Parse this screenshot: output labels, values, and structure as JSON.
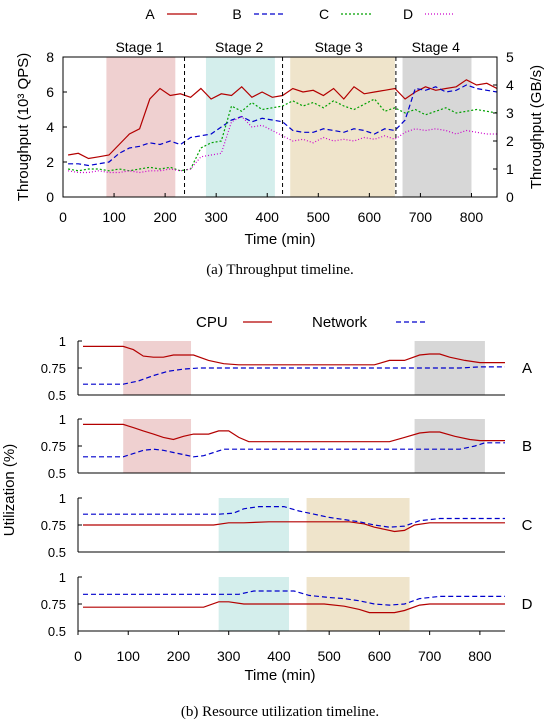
{
  "chart_data": [
    {
      "type": "line",
      "caption": "(a) Throughput timeline.",
      "xlabel": "Time (min)",
      "ylabel_left": "Throughput (10³ QPS)",
      "ylabel_right": "Throughput (GB/s)",
      "xlim": [
        0,
        850
      ],
      "ylim_left": [
        0,
        8
      ],
      "ylim_right": [
        0,
        5
      ],
      "xticks": [
        0,
        100,
        200,
        300,
        400,
        500,
        600,
        700,
        800
      ],
      "yticks_left": [
        0,
        2,
        4,
        6,
        8
      ],
      "yticks_right": [
        0,
        1,
        2,
        3,
        4,
        5
      ],
      "legend_position": "top",
      "stages": [
        {
          "label": "Stage 1",
          "start": 85,
          "end": 220,
          "color": "#efd0d0",
          "label_x": 150
        },
        {
          "label": "Stage 2",
          "start": 280,
          "end": 415,
          "color": "#d4eeec",
          "label_x": 345
        },
        {
          "label": "Stage 3",
          "start": 445,
          "end": 650,
          "color": "#efe4cb",
          "label_x": 540
        },
        {
          "label": "Stage 4",
          "start": 665,
          "end": 800,
          "color": "#d7d7d7",
          "label_x": 730
        }
      ],
      "dividers": [
        238,
        430,
        652
      ],
      "series": [
        {
          "name": "A",
          "color": "#b30000",
          "dash": "",
          "x": [
            10,
            30,
            50,
            70,
            90,
            110,
            130,
            150,
            170,
            190,
            210,
            230,
            250,
            270,
            290,
            310,
            330,
            350,
            370,
            390,
            410,
            430,
            450,
            470,
            490,
            510,
            530,
            550,
            570,
            590,
            610,
            630,
            650,
            670,
            690,
            710,
            730,
            750,
            770,
            790,
            810,
            830,
            850
          ],
          "y": [
            2.4,
            2.5,
            2.2,
            2.3,
            2.4,
            3.0,
            3.6,
            3.9,
            5.6,
            6.2,
            5.8,
            5.9,
            5.7,
            6.2,
            5.6,
            5.9,
            5.8,
            6.3,
            5.7,
            6.0,
            5.7,
            5.8,
            6.2,
            6.0,
            6.1,
            5.8,
            6.2,
            5.6,
            6.3,
            5.9,
            6.0,
            6.1,
            6.2,
            5.6,
            6.0,
            6.3,
            6.1,
            6.2,
            6.3,
            6.7,
            6.4,
            6.5,
            6.2
          ]
        },
        {
          "name": "B",
          "color": "#0000cc",
          "dash": "5,3",
          "x": [
            10,
            30,
            50,
            70,
            90,
            110,
            130,
            150,
            170,
            190,
            210,
            230,
            250,
            270,
            290,
            310,
            330,
            350,
            370,
            390,
            410,
            430,
            450,
            470,
            490,
            510,
            530,
            550,
            570,
            590,
            610,
            630,
            650,
            670,
            690,
            710,
            730,
            750,
            770,
            790,
            810,
            830,
            850
          ],
          "y": [
            1.9,
            1.9,
            1.8,
            1.9,
            2.0,
            2.5,
            2.8,
            2.9,
            3.1,
            3.0,
            3.2,
            3.0,
            3.4,
            3.5,
            3.6,
            4.0,
            4.4,
            4.6,
            4.3,
            4.5,
            4.4,
            4.3,
            3.8,
            3.7,
            3.7,
            3.9,
            3.8,
            3.7,
            3.9,
            3.8,
            3.6,
            3.9,
            3.8,
            4.4,
            6.2,
            6.1,
            6.3,
            6.0,
            6.1,
            6.4,
            6.2,
            6.1,
            6.0
          ]
        },
        {
          "name": "C",
          "color": "#00a000",
          "dash": "2,2",
          "x": [
            10,
            30,
            50,
            70,
            90,
            110,
            130,
            150,
            170,
            190,
            210,
            230,
            250,
            270,
            290,
            310,
            330,
            350,
            370,
            390,
            410,
            430,
            450,
            470,
            490,
            510,
            530,
            550,
            570,
            590,
            610,
            630,
            650,
            670,
            690,
            710,
            730,
            750,
            770,
            790,
            810,
            830,
            850
          ],
          "y": [
            1.6,
            1.5,
            1.6,
            1.6,
            1.5,
            1.6,
            1.5,
            1.6,
            1.7,
            1.6,
            1.7,
            1.5,
            1.6,
            2.8,
            3.1,
            3.2,
            5.2,
            4.9,
            5.4,
            5.0,
            5.1,
            5.2,
            5.5,
            5.2,
            5.4,
            5.1,
            5.5,
            5.2,
            5.0,
            5.3,
            5.6,
            4.9,
            5.1,
            4.8,
            5.0,
            4.7,
            4.9,
            5.1,
            4.8,
            4.9,
            5.0,
            4.9,
            4.8
          ]
        },
        {
          "name": "D",
          "color": "#cc00cc",
          "dash": "1,2",
          "x": [
            10,
            30,
            50,
            70,
            90,
            110,
            130,
            150,
            170,
            190,
            210,
            230,
            250,
            270,
            290,
            310,
            330,
            350,
            370,
            390,
            410,
            430,
            450,
            470,
            490,
            510,
            530,
            550,
            570,
            590,
            610,
            630,
            650,
            670,
            690,
            710,
            730,
            750,
            770,
            790,
            810,
            830,
            850
          ],
          "y": [
            1.5,
            1.4,
            1.4,
            1.5,
            1.4,
            1.4,
            1.5,
            1.4,
            1.5,
            1.5,
            1.6,
            1.5,
            1.6,
            2.3,
            2.4,
            2.5,
            4.3,
            4.6,
            4.0,
            4.1,
            3.8,
            3.5,
            3.2,
            3.3,
            3.1,
            3.4,
            3.2,
            3.3,
            3.2,
            3.4,
            3.3,
            3.5,
            3.3,
            3.7,
            3.9,
            3.8,
            3.9,
            3.8,
            3.6,
            3.8,
            3.7,
            3.6,
            3.6
          ]
        }
      ]
    },
    {
      "type": "line",
      "caption": "(b) Resource utilization timeline.",
      "xlabel": "Time (min)",
      "ylabel": "Utilization (%)",
      "xlim": [
        0,
        850
      ],
      "xticks": [
        0,
        100,
        200,
        300,
        400,
        500,
        600,
        700,
        800
      ],
      "ylim": [
        0.5,
        1
      ],
      "yticks": [
        0.5,
        0.75,
        1
      ],
      "ytick_labels": [
        "0.5",
        "0.75",
        "1"
      ],
      "legend": [
        {
          "name": "CPU",
          "color": "#b30000",
          "dash": ""
        },
        {
          "name": "Network",
          "color": "#0000cc",
          "dash": "5,3"
        }
      ],
      "panels": [
        {
          "label": "A",
          "shades": [
            {
              "start": 90,
              "end": 225,
              "color": "#efd0d0"
            },
            {
              "start": 670,
              "end": 810,
              "color": "#d7d7d7"
            }
          ],
          "cpu": {
            "x": [
              10,
              90,
              110,
              130,
              150,
              170,
              190,
              210,
              230,
              260,
              290,
              320,
              350,
              380,
              410,
              440,
              470,
              500,
              530,
              560,
              590,
              620,
              650,
              680,
              700,
              720,
              740,
              770,
              800,
              850
            ],
            "y": [
              0.95,
              0.95,
              0.92,
              0.86,
              0.85,
              0.85,
              0.87,
              0.87,
              0.87,
              0.82,
              0.79,
              0.78,
              0.78,
              0.78,
              0.78,
              0.78,
              0.78,
              0.78,
              0.78,
              0.78,
              0.78,
              0.82,
              0.82,
              0.87,
              0.88,
              0.88,
              0.85,
              0.82,
              0.8,
              0.8
            ]
          },
          "net": {
            "x": [
              10,
              90,
              120,
              150,
              180,
              210,
              240,
              280,
              320,
              360,
              400,
              440,
              480,
              520,
              560,
              600,
              640,
              680,
              720,
              760,
              800,
              850
            ],
            "y": [
              0.6,
              0.6,
              0.63,
              0.68,
              0.72,
              0.74,
              0.75,
              0.75,
              0.75,
              0.75,
              0.75,
              0.75,
              0.75,
              0.75,
              0.75,
              0.75,
              0.75,
              0.75,
              0.75,
              0.75,
              0.76,
              0.76
            ]
          }
        },
        {
          "label": "B",
          "shades": [
            {
              "start": 90,
              "end": 225,
              "color": "#efd0d0"
            },
            {
              "start": 670,
              "end": 810,
              "color": "#d7d7d7"
            }
          ],
          "cpu": {
            "x": [
              10,
              90,
              110,
              130,
              150,
              170,
              190,
              210,
              230,
              260,
              280,
              300,
              320,
              340,
              380,
              420,
              460,
              500,
              540,
              580,
              620,
              650,
              680,
              700,
              720,
              750,
              780,
              800,
              850
            ],
            "y": [
              0.95,
              0.95,
              0.92,
              0.89,
              0.86,
              0.83,
              0.81,
              0.84,
              0.86,
              0.86,
              0.89,
              0.89,
              0.83,
              0.79,
              0.79,
              0.79,
              0.79,
              0.79,
              0.79,
              0.79,
              0.79,
              0.83,
              0.87,
              0.88,
              0.88,
              0.84,
              0.81,
              0.8,
              0.8
            ]
          },
          "net": {
            "x": [
              10,
              90,
              110,
              130,
              150,
              170,
              190,
              210,
              230,
              250,
              270,
              290,
              330,
              380,
              430,
              480,
              530,
              580,
              630,
              680,
              720,
              760,
              790,
              810,
              850
            ],
            "y": [
              0.65,
              0.65,
              0.68,
              0.71,
              0.72,
              0.71,
              0.69,
              0.67,
              0.65,
              0.66,
              0.69,
              0.72,
              0.72,
              0.72,
              0.72,
              0.72,
              0.72,
              0.72,
              0.72,
              0.72,
              0.72,
              0.72,
              0.75,
              0.78,
              0.78
            ]
          }
        },
        {
          "label": "C",
          "shades": [
            {
              "start": 280,
              "end": 420,
              "color": "#d4eeec"
            },
            {
              "start": 455,
              "end": 660,
              "color": "#efe4cb"
            }
          ],
          "cpu": {
            "x": [
              10,
              100,
              200,
              270,
              300,
              330,
              380,
              420,
              460,
              500,
              540,
              570,
              590,
              610,
              630,
              650,
              670,
              700,
              750,
              800,
              850
            ],
            "y": [
              0.75,
              0.75,
              0.75,
              0.75,
              0.77,
              0.77,
              0.78,
              0.78,
              0.78,
              0.78,
              0.78,
              0.76,
              0.73,
              0.71,
              0.69,
              0.7,
              0.75,
              0.77,
              0.77,
              0.77,
              0.77
            ]
          },
          "net": {
            "x": [
              10,
              100,
              200,
              280,
              310,
              330,
              360,
              410,
              440,
              470,
              500,
              530,
              560,
              590,
              620,
              650,
              680,
              720,
              780,
              850
            ],
            "y": [
              0.85,
              0.85,
              0.85,
              0.85,
              0.86,
              0.9,
              0.92,
              0.92,
              0.88,
              0.85,
              0.82,
              0.8,
              0.78,
              0.75,
              0.73,
              0.74,
              0.79,
              0.81,
              0.81,
              0.81
            ]
          }
        },
        {
          "label": "D",
          "shades": [
            {
              "start": 280,
              "end": 420,
              "color": "#d4eeec"
            },
            {
              "start": 455,
              "end": 660,
              "color": "#efe4cb"
            }
          ],
          "cpu": {
            "x": [
              10,
              100,
              200,
              250,
              280,
              300,
              330,
              370,
              410,
              450,
              490,
              530,
              560,
              580,
              600,
              630,
              650,
              680,
              700,
              750,
              800,
              850
            ],
            "y": [
              0.72,
              0.72,
              0.72,
              0.72,
              0.77,
              0.77,
              0.75,
              0.75,
              0.75,
              0.75,
              0.75,
              0.73,
              0.7,
              0.67,
              0.67,
              0.67,
              0.69,
              0.74,
              0.75,
              0.75,
              0.75,
              0.75
            ]
          },
          "net": {
            "x": [
              10,
              100,
              200,
              280,
              320,
              350,
              400,
              430,
              460,
              500,
              530,
              560,
              590,
              620,
              650,
              680,
              720,
              780,
              850
            ],
            "y": [
              0.84,
              0.84,
              0.84,
              0.84,
              0.84,
              0.87,
              0.87,
              0.87,
              0.83,
              0.81,
              0.8,
              0.78,
              0.75,
              0.74,
              0.75,
              0.8,
              0.82,
              0.82,
              0.82
            ]
          }
        }
      ]
    }
  ]
}
